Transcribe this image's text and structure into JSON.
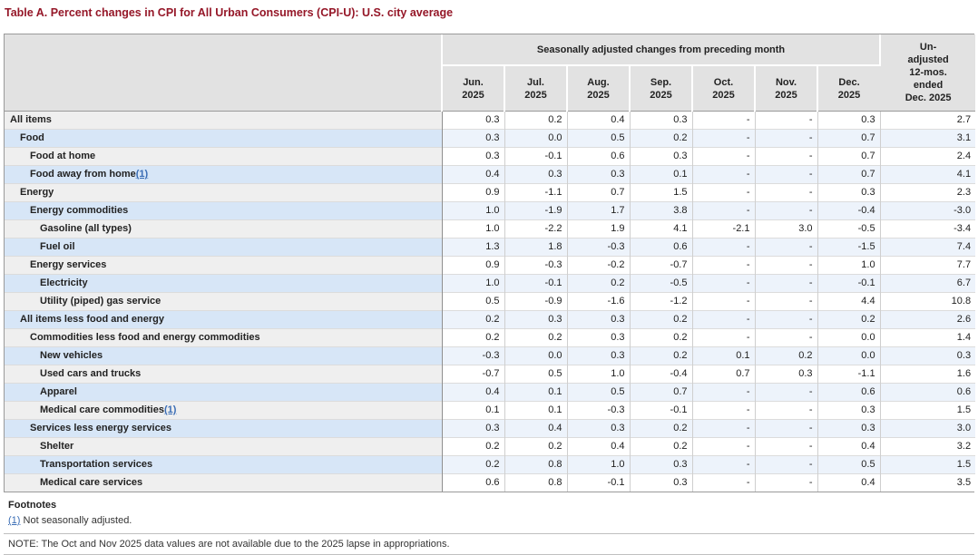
{
  "title": "Table A. Percent changes in CPI for All Urban Consumers (CPI-U): U.S. city average",
  "table": {
    "group_header": "Seasonally adjusted changes from preceding month",
    "unadjusted_header": "Un-\nadjusted\n12-mos.\nended\nDec. 2025",
    "columns": [
      "Jun.\n2025",
      "Jul.\n2025",
      "Aug.\n2025",
      "Sep.\n2025",
      "Oct.\n2025",
      "Nov.\n2025",
      "Dec.\n2025"
    ],
    "rows": [
      {
        "label": "All items",
        "indent": 0,
        "footnote_ref": "",
        "values": [
          "0.3",
          "0.2",
          "0.4",
          "0.3",
          "-",
          "-",
          "0.3",
          "2.7"
        ]
      },
      {
        "label": "Food",
        "indent": 1,
        "footnote_ref": "",
        "values": [
          "0.3",
          "0.0",
          "0.5",
          "0.2",
          "-",
          "-",
          "0.7",
          "3.1"
        ]
      },
      {
        "label": "Food at home",
        "indent": 2,
        "footnote_ref": "",
        "values": [
          "0.3",
          "-0.1",
          "0.6",
          "0.3",
          "-",
          "-",
          "0.7",
          "2.4"
        ]
      },
      {
        "label": "Food away from home",
        "indent": 2,
        "footnote_ref": "(1)",
        "values": [
          "0.4",
          "0.3",
          "0.3",
          "0.1",
          "-",
          "-",
          "0.7",
          "4.1"
        ]
      },
      {
        "label": "Energy",
        "indent": 1,
        "footnote_ref": "",
        "values": [
          "0.9",
          "-1.1",
          "0.7",
          "1.5",
          "-",
          "-",
          "0.3",
          "2.3"
        ]
      },
      {
        "label": "Energy commodities",
        "indent": 2,
        "footnote_ref": "",
        "values": [
          "1.0",
          "-1.9",
          "1.7",
          "3.8",
          "-",
          "-",
          "-0.4",
          "-3.0"
        ]
      },
      {
        "label": "Gasoline (all types)",
        "indent": 3,
        "footnote_ref": "",
        "values": [
          "1.0",
          "-2.2",
          "1.9",
          "4.1",
          "-2.1",
          "3.0",
          "-0.5",
          "-3.4"
        ]
      },
      {
        "label": "Fuel oil",
        "indent": 3,
        "footnote_ref": "",
        "values": [
          "1.3",
          "1.8",
          "-0.3",
          "0.6",
          "-",
          "-",
          "-1.5",
          "7.4"
        ]
      },
      {
        "label": "Energy services",
        "indent": 2,
        "footnote_ref": "",
        "values": [
          "0.9",
          "-0.3",
          "-0.2",
          "-0.7",
          "-",
          "-",
          "1.0",
          "7.7"
        ]
      },
      {
        "label": "Electricity",
        "indent": 3,
        "footnote_ref": "",
        "values": [
          "1.0",
          "-0.1",
          "0.2",
          "-0.5",
          "-",
          "-",
          "-0.1",
          "6.7"
        ]
      },
      {
        "label": "Utility (piped) gas service",
        "indent": 3,
        "footnote_ref": "",
        "values": [
          "0.5",
          "-0.9",
          "-1.6",
          "-1.2",
          "-",
          "-",
          "4.4",
          "10.8"
        ]
      },
      {
        "label": "All items less food and energy",
        "indent": 1,
        "footnote_ref": "",
        "values": [
          "0.2",
          "0.3",
          "0.3",
          "0.2",
          "-",
          "-",
          "0.2",
          "2.6"
        ]
      },
      {
        "label": "Commodities less food and energy commodities",
        "indent": 2,
        "footnote_ref": "",
        "values": [
          "0.2",
          "0.2",
          "0.3",
          "0.2",
          "-",
          "-",
          "0.0",
          "1.4"
        ]
      },
      {
        "label": "New vehicles",
        "indent": 3,
        "footnote_ref": "",
        "values": [
          "-0.3",
          "0.0",
          "0.3",
          "0.2",
          "0.1",
          "0.2",
          "0.0",
          "0.3"
        ]
      },
      {
        "label": "Used cars and trucks",
        "indent": 3,
        "footnote_ref": "",
        "values": [
          "-0.7",
          "0.5",
          "1.0",
          "-0.4",
          "0.7",
          "0.3",
          "-1.1",
          "1.6"
        ]
      },
      {
        "label": "Apparel",
        "indent": 3,
        "footnote_ref": "",
        "values": [
          "0.4",
          "0.1",
          "0.5",
          "0.7",
          "-",
          "-",
          "0.6",
          "0.6"
        ]
      },
      {
        "label": "Medical care commodities",
        "indent": 3,
        "footnote_ref": "(1)",
        "values": [
          "0.1",
          "0.1",
          "-0.3",
          "-0.1",
          "-",
          "-",
          "0.3",
          "1.5"
        ]
      },
      {
        "label": "Services less energy services",
        "indent": 2,
        "footnote_ref": "",
        "values": [
          "0.3",
          "0.4",
          "0.3",
          "0.2",
          "-",
          "-",
          "0.3",
          "3.0"
        ]
      },
      {
        "label": "Shelter",
        "indent": 3,
        "footnote_ref": "",
        "values": [
          "0.2",
          "0.2",
          "0.4",
          "0.2",
          "-",
          "-",
          "0.4",
          "3.2"
        ]
      },
      {
        "label": "Transportation services",
        "indent": 3,
        "footnote_ref": "",
        "values": [
          "0.2",
          "0.8",
          "1.0",
          "0.3",
          "-",
          "-",
          "0.5",
          "1.5"
        ]
      },
      {
        "label": "Medical care services",
        "indent": 3,
        "footnote_ref": "",
        "values": [
          "0.6",
          "0.8",
          "-0.1",
          "0.3",
          "-",
          "-",
          "0.4",
          "3.5"
        ]
      }
    ]
  },
  "footnotes": {
    "heading": "Footnotes",
    "items": [
      {
        "ref": "(1)",
        "text": "Not seasonally adjusted."
      }
    ],
    "note": "NOTE: The Oct and Nov 2025 data values are not available due to the 2025 lapse in appropriations."
  },
  "colors": {
    "title": "#951728",
    "header_bg": "#e2e2e2",
    "row_label_gray": "#efefef",
    "row_label_blue": "#d7e6f7",
    "row_data_white": "#ffffff",
    "row_data_blue": "#edf3fb",
    "link": "#3a6db5"
  }
}
